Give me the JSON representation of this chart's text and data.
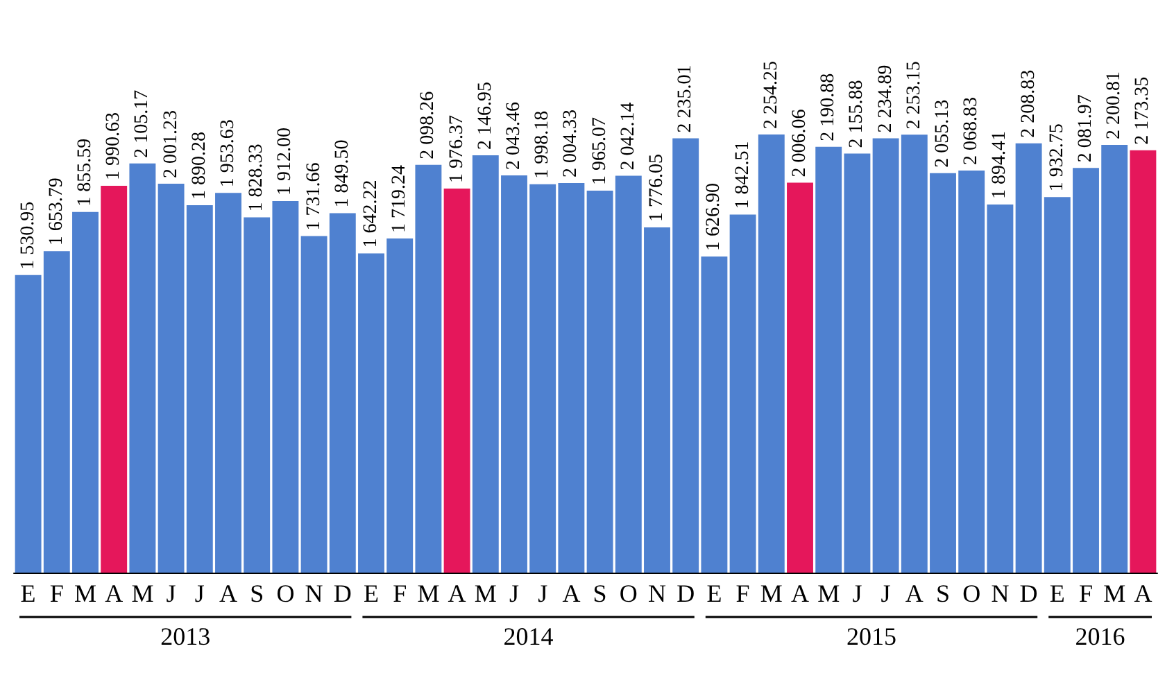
{
  "chart_data": {
    "type": "bar",
    "categories": [
      "E",
      "F",
      "M",
      "A",
      "M",
      "J",
      "J",
      "A",
      "S",
      "O",
      "N",
      "D",
      "E",
      "F",
      "M",
      "A",
      "M",
      "J",
      "J",
      "A",
      "S",
      "O",
      "N",
      "D",
      "E",
      "F",
      "M",
      "A",
      "M",
      "J",
      "J",
      "A",
      "S",
      "O",
      "N",
      "D",
      "E",
      "F",
      "M",
      "A"
    ],
    "values": [
      1530.95,
      1653.79,
      1855.59,
      1990.63,
      2105.17,
      2001.23,
      1890.28,
      1953.63,
      1828.33,
      1912.0,
      1731.66,
      1849.5,
      1642.22,
      1719.24,
      2098.26,
      1976.37,
      2146.95,
      2043.46,
      1998.18,
      2004.33,
      1965.07,
      2042.14,
      1776.05,
      2235.01,
      1626.9,
      1842.51,
      2254.25,
      2006.06,
      2190.88,
      2155.88,
      2234.89,
      2253.15,
      2055.13,
      2068.83,
      1894.41,
      2208.83,
      1932.75,
      2081.97,
      2200.81,
      2173.35
    ],
    "value_labels": [
      "1 530.95",
      "1 653.79",
      "1 855.59",
      "1 990.63",
      "2 105.17",
      "2 001.23",
      "1 890.28",
      "1 953.63",
      "1 828.33",
      "1 912.00",
      "1 731.66",
      "1 849.50",
      "1 642.22",
      "1 719.24",
      "2 098.26",
      "1 976.37",
      "2 146.95",
      "2 043.46",
      "1 998.18",
      "2 004.33",
      "1 965.07",
      "2 042.14",
      "1 776.05",
      "2 235.01",
      "1 626.90",
      "1 842.51",
      "2 254.25",
      "2 006.06",
      "2 190.88",
      "2 155.88",
      "2 234.89",
      "2 253.15",
      "2 055.13",
      "2 068.83",
      "1 894.41",
      "2 208.83",
      "1 932.75",
      "2 081.97",
      "2 200.81",
      "2 173.35"
    ],
    "colors": [
      "#4f81d0",
      "#4f81d0",
      "#4f81d0",
      "#e5175b",
      "#4f81d0",
      "#4f81d0",
      "#4f81d0",
      "#4f81d0",
      "#4f81d0",
      "#4f81d0",
      "#4f81d0",
      "#4f81d0",
      "#4f81d0",
      "#4f81d0",
      "#4f81d0",
      "#e5175b",
      "#4f81d0",
      "#4f81d0",
      "#4f81d0",
      "#4f81d0",
      "#4f81d0",
      "#4f81d0",
      "#4f81d0",
      "#4f81d0",
      "#4f81d0",
      "#4f81d0",
      "#4f81d0",
      "#e5175b",
      "#4f81d0",
      "#4f81d0",
      "#4f81d0",
      "#4f81d0",
      "#4f81d0",
      "#4f81d0",
      "#4f81d0",
      "#4f81d0",
      "#4f81d0",
      "#4f81d0",
      "#4f81d0",
      "#e5175b"
    ],
    "annotations": [
      "2013",
      "2014",
      "2015",
      "2016"
    ]
  }
}
